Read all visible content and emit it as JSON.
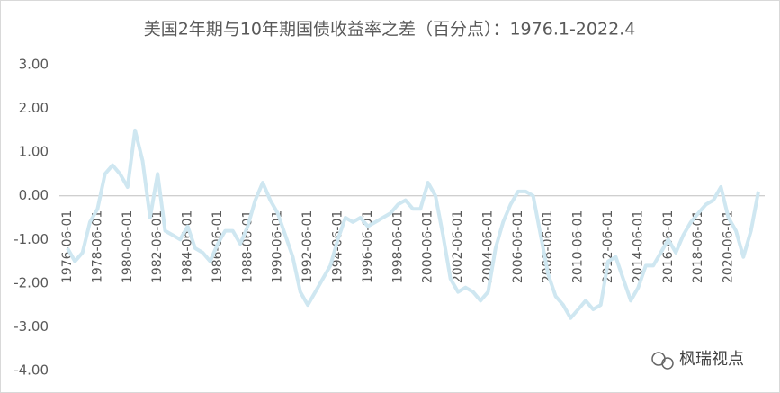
{
  "chart_data": {
    "type": "line",
    "title": "美国2年期与10年期国债收益率之差（百分点）：1976.1-2022.4",
    "categories": [
      "1976-06-01",
      null,
      null,
      null,
      "1978-06-01",
      null,
      null,
      null,
      "1980-06-01",
      null,
      null,
      null,
      "1982-06-01",
      null,
      null,
      null,
      "1984-06-01",
      null,
      null,
      null,
      "1986-06-01",
      null,
      null,
      null,
      "1988-06-01",
      null,
      null,
      null,
      "1990-06-01",
      null,
      null,
      null,
      "1992-06-01",
      null,
      null,
      null,
      "1994-06-01",
      null,
      null,
      null,
      "1996-06-01",
      null,
      null,
      null,
      "1998-06-01",
      null,
      null,
      null,
      "2000-06-01",
      null,
      null,
      null,
      "2002-06-01",
      null,
      null,
      null,
      "2004-06-01",
      null,
      null,
      null,
      "2006-06-01",
      null,
      null,
      null,
      "2008-06-01",
      null,
      null,
      null,
      "2010-06-01",
      null,
      null,
      null,
      "2012-06-01",
      null,
      null,
      null,
      "2014-06-01",
      null,
      null,
      null,
      "2016-06-01",
      null,
      null,
      null,
      "2018-06-01",
      null,
      null,
      null,
      "2020-06-01",
      null,
      null,
      null,
      null
    ],
    "values": [
      -1.2,
      -1.5,
      -1.3,
      -0.6,
      -0.3,
      0.5,
      0.7,
      0.5,
      0.2,
      1.5,
      0.8,
      -0.5,
      0.5,
      -0.8,
      -0.9,
      -1.0,
      -0.7,
      -1.2,
      -1.3,
      -1.5,
      -1.1,
      -0.8,
      -0.8,
      -1.1,
      -0.7,
      -0.1,
      0.3,
      -0.1,
      -0.4,
      -0.9,
      -1.4,
      -2.2,
      -2.5,
      -2.2,
      -1.9,
      -1.6,
      -1.0,
      -0.5,
      -0.6,
      -0.5,
      -0.7,
      -0.6,
      -0.5,
      -0.4,
      -0.2,
      -0.1,
      -0.3,
      -0.3,
      0.3,
      0.0,
      -0.9,
      -1.9,
      -2.2,
      -2.1,
      -2.2,
      -2.4,
      -2.2,
      -1.2,
      -0.6,
      -0.2,
      0.1,
      0.1,
      0.0,
      -0.9,
      -1.8,
      -2.3,
      -2.5,
      -2.8,
      -2.6,
      -2.4,
      -2.6,
      -2.5,
      -1.5,
      -1.4,
      -1.9,
      -2.4,
      -2.1,
      -1.6,
      -1.6,
      -1.3,
      -1.0,
      -1.3,
      -0.9,
      -0.6,
      -0.4,
      -0.2,
      -0.1,
      0.2,
      -0.5,
      -0.8,
      -1.4,
      -0.8,
      0.1
    ],
    "color": "#cfe7f1",
    "ylim": [
      -4,
      3
    ],
    "yticks": [
      {
        "value": 3,
        "label": "3.00"
      },
      {
        "value": 2,
        "label": "2.00"
      },
      {
        "value": 1,
        "label": "1.00"
      },
      {
        "value": 0,
        "label": "0.00"
      },
      {
        "value": -1,
        "label": "-1.00"
      },
      {
        "value": -2,
        "label": "-2.00"
      },
      {
        "value": -3,
        "label": "-3.00"
      },
      {
        "value": -4,
        "label": "-4.00"
      }
    ],
    "grid": false
  },
  "watermark": "枫瑞视点"
}
